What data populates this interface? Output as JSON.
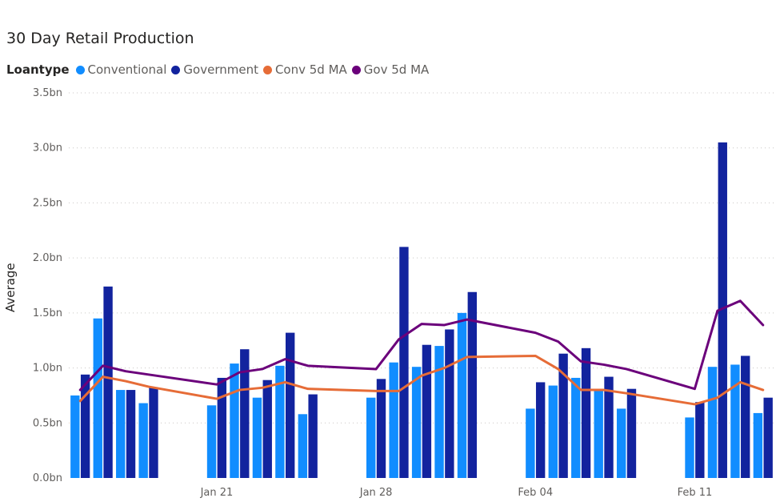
{
  "title": "30 Day Retail Production",
  "legend": {
    "title": "Loantype",
    "items": [
      {
        "label": "Conventional",
        "color": "#118DFF"
      },
      {
        "label": "Government",
        "color": "#12239E"
      },
      {
        "label": "Conv 5d MA",
        "color": "#E66C37"
      },
      {
        "label": "Gov 5d MA",
        "color": "#6B007B"
      }
    ]
  },
  "chart_data": {
    "type": "bar",
    "title": "30 Day Retail Production",
    "xlabel": "",
    "ylabel": "Average",
    "ylim": [
      0,
      3.5
    ],
    "yticks": [
      {
        "v": 0,
        "label": "0.0bn"
      },
      {
        "v": 0.5,
        "label": "0.5bn"
      },
      {
        "v": 1,
        "label": "1.0bn"
      },
      {
        "v": 1.5,
        "label": "1.5bn"
      },
      {
        "v": 2,
        "label": "2.0bn"
      },
      {
        "v": 2.5,
        "label": "2.5bn"
      },
      {
        "v": 3,
        "label": "3.0bn"
      },
      {
        "v": 3.5,
        "label": "3.5bn"
      }
    ],
    "xticks": [
      {
        "date": "2019-01-21",
        "label": "Jan 21"
      },
      {
        "date": "2019-01-28",
        "label": "Jan 28"
      },
      {
        "date": "2019-02-04",
        "label": "Feb 04"
      },
      {
        "date": "2019-02-11",
        "label": "Feb 11"
      }
    ],
    "grid": true,
    "legend_position": "top-left",
    "dates": [
      "2019-01-15",
      "2019-01-16",
      "2019-01-17",
      "2019-01-18",
      "2019-01-21",
      "2019-01-22",
      "2019-01-23",
      "2019-01-24",
      "2019-01-25",
      "2019-01-28",
      "2019-01-29",
      "2019-01-30",
      "2019-01-31",
      "2019-02-01",
      "2019-02-04",
      "2019-02-05",
      "2019-02-06",
      "2019-02-07",
      "2019-02-08",
      "2019-02-11",
      "2019-02-12",
      "2019-02-13",
      "2019-02-14"
    ],
    "series": [
      {
        "name": "Conventional",
        "kind": "bar",
        "color": "#118DFF",
        "values": [
          0.75,
          1.45,
          0.8,
          0.68,
          0.66,
          1.04,
          0.73,
          1.02,
          0.58,
          0.73,
          1.05,
          1.01,
          1.2,
          1.5,
          0.63,
          0.84,
          0.91,
          0.81,
          0.63,
          0.55,
          1.01,
          1.03,
          0.59
        ]
      },
      {
        "name": "Government",
        "kind": "bar",
        "color": "#12239E",
        "values": [
          0.94,
          1.74,
          0.8,
          0.82,
          0.91,
          1.17,
          0.89,
          1.32,
          0.76,
          0.9,
          2.1,
          1.21,
          1.35,
          1.69,
          0.87,
          1.13,
          1.18,
          0.92,
          0.81,
          0.69,
          3.05,
          1.11,
          0.73
        ]
      },
      {
        "name": "Conv 5d MA",
        "kind": "line",
        "color": "#E66C37",
        "values": [
          0.7,
          0.92,
          0.88,
          0.83,
          0.72,
          0.8,
          0.82,
          0.87,
          0.81,
          0.79,
          0.79,
          0.93,
          1.0,
          1.1,
          1.11,
          0.99,
          0.8,
          0.8,
          0.77,
          0.67,
          0.73,
          0.87,
          0.8
        ]
      },
      {
        "name": "Gov 5d MA",
        "kind": "line",
        "color": "#6B007B",
        "values": [
          0.8,
          1.02,
          0.97,
          0.94,
          0.85,
          0.96,
          0.99,
          1.08,
          1.02,
          0.99,
          1.26,
          1.4,
          1.39,
          1.44,
          1.32,
          1.24,
          1.06,
          1.03,
          0.99,
          0.81,
          1.52,
          1.61,
          1.39
        ]
      }
    ]
  }
}
